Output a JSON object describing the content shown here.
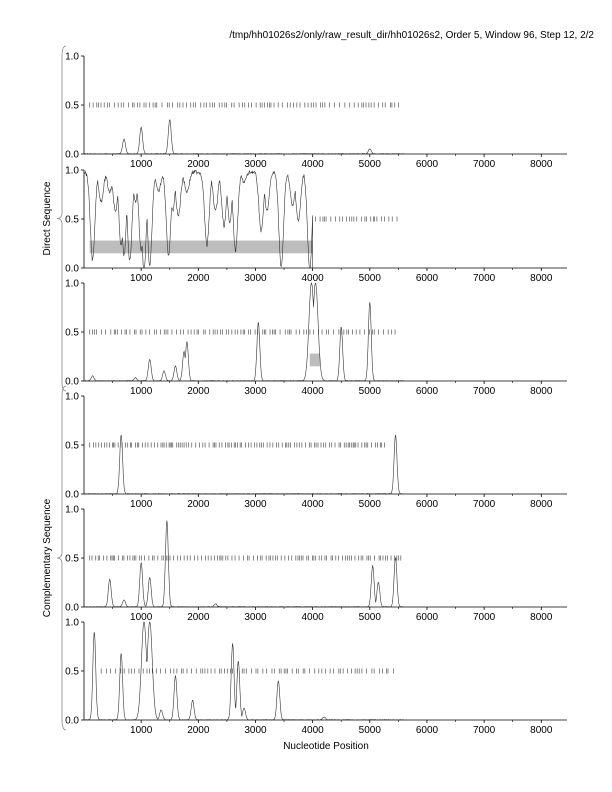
{
  "header": "/tmp/hh01026s2/only/raw_result_dir/hh01026s2, Order 5, Window 96, Step 12, 2/2",
  "chart_data": {
    "type": "line",
    "xlabel": "Nucleotide Position",
    "xlim": [
      0,
      8450
    ],
    "ylim": [
      0,
      1
    ],
    "xticks": [
      "1000",
      "2000",
      "3000",
      "4000",
      "5000",
      "6000",
      "7000",
      "8000"
    ],
    "xtick_values": [
      1000,
      2000,
      3000,
      4000,
      5000,
      6000,
      7000,
      8000
    ],
    "yticks": [
      "0.0",
      "0.5",
      "1.0"
    ],
    "ytick_values": [
      0,
      0.5,
      1
    ],
    "groups": [
      {
        "label": "Direct Sequence",
        "panels": [
          0,
          1,
          2
        ]
      },
      {
        "label": "Complementary Sequence",
        "panels": [
          3,
          4,
          5
        ]
      }
    ],
    "panels": [
      {
        "baseline": 0,
        "peaks": [
          [
            700,
            0.15
          ],
          [
            1000,
            0.27
          ],
          [
            1500,
            0.35
          ],
          [
            5000,
            0.05
          ]
        ],
        "orf_marks": {
          "start": 100,
          "end": 5550,
          "step": 60
        },
        "boxes": []
      },
      {
        "baseline": 1,
        "end": 4000,
        "peaks": [
          [
            150,
            0.1
          ],
          [
            300,
            0.7
          ],
          [
            450,
            0.8
          ],
          [
            550,
            0.6
          ],
          [
            650,
            0.25
          ],
          [
            700,
            0.15
          ],
          [
            800,
            0.1
          ],
          [
            900,
            0.7
          ],
          [
            1000,
            0.2
          ],
          [
            1050,
            0.0
          ],
          [
            1150,
            0.05
          ],
          [
            1300,
            0.8
          ],
          [
            1480,
            0.15
          ],
          [
            1550,
            0.6
          ],
          [
            1650,
            0.55
          ],
          [
            1800,
            0.8
          ],
          [
            2150,
            0.25
          ],
          [
            2300,
            0.6
          ],
          [
            2450,
            0.45
          ],
          [
            2550,
            0.5
          ],
          [
            2650,
            0.2
          ],
          [
            2800,
            0.9
          ],
          [
            3100,
            0.4
          ],
          [
            3200,
            0.6
          ],
          [
            3450,
            0.02
          ],
          [
            3650,
            0.65
          ],
          [
            3750,
            0.5
          ],
          [
            3950,
            0.0
          ]
        ],
        "orf_marks": {
          "start": 4050,
          "end": 5500,
          "step": 55
        },
        "boxes": [
          [
            100,
            4000,
            0.15,
            0.28
          ]
        ]
      },
      {
        "baseline": 0,
        "peaks": [
          [
            150,
            0.05
          ],
          [
            900,
            0.03
          ],
          [
            1150,
            0.22
          ],
          [
            1400,
            0.1
          ],
          [
            1600,
            0.15
          ],
          [
            1750,
            0.3
          ],
          [
            1800,
            0.4
          ],
          [
            3050,
            0.6
          ],
          [
            3980,
            1.0
          ],
          [
            4050,
            1.0
          ],
          [
            4500,
            0.55
          ],
          [
            5000,
            0.8
          ]
        ],
        "orf_marks": {
          "start": 100,
          "end": 5500,
          "step": 58
        },
        "boxes": [
          [
            3950,
            4130,
            0.15,
            0.28
          ]
        ]
      },
      {
        "baseline": 0,
        "peaks": [
          [
            650,
            0.6
          ],
          [
            5450,
            0.6
          ]
        ],
        "orf_marks": {
          "start": 100,
          "end": 5300,
          "step": 45
        },
        "boxes": []
      },
      {
        "baseline": 0,
        "peaks": [
          [
            450,
            0.28
          ],
          [
            700,
            0.07
          ],
          [
            1000,
            0.45
          ],
          [
            1150,
            0.3
          ],
          [
            1450,
            0.88
          ],
          [
            2300,
            0.03
          ],
          [
            5050,
            0.42
          ],
          [
            5150,
            0.25
          ],
          [
            5450,
            0.5
          ]
        ],
        "orf_marks": {
          "start": 100,
          "end": 5550,
          "step": 50
        },
        "boxes": []
      },
      {
        "baseline": 0,
        "peaks": [
          [
            180,
            0.9
          ],
          [
            650,
            0.68
          ],
          [
            1050,
            1.0
          ],
          [
            1150,
            1.0
          ],
          [
            1350,
            0.1
          ],
          [
            1600,
            0.45
          ],
          [
            1900,
            0.2
          ],
          [
            2600,
            0.78
          ],
          [
            2700,
            0.6
          ],
          [
            2800,
            0.12
          ],
          [
            3400,
            0.4
          ],
          [
            4200,
            0.03
          ]
        ],
        "orf_marks": {
          "start": 300,
          "end": 5500,
          "step": 62
        },
        "boxes": []
      }
    ]
  }
}
